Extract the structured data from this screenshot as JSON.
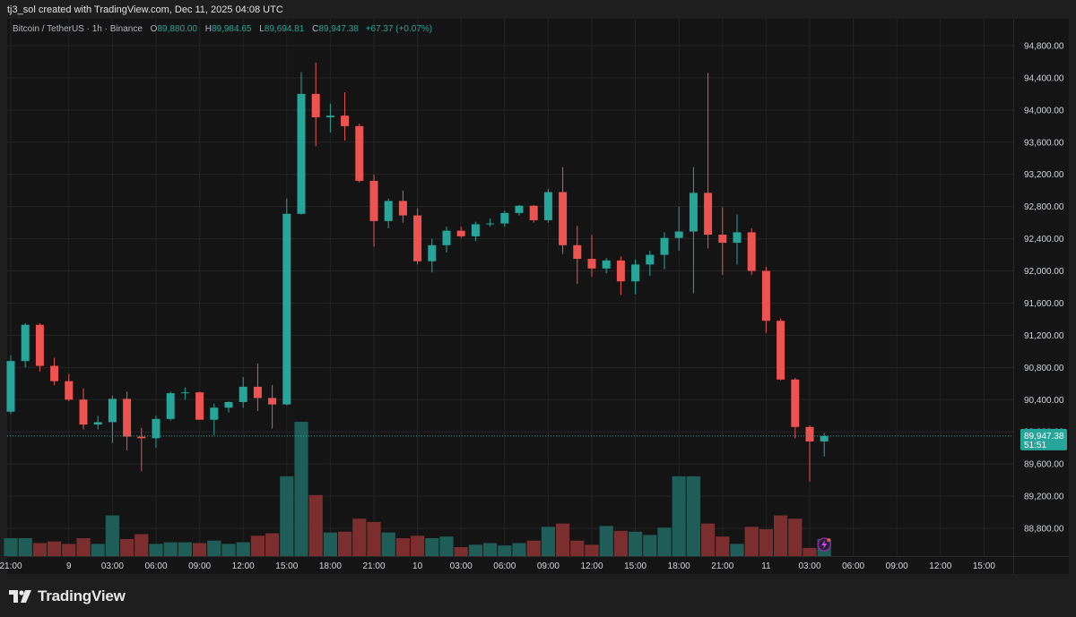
{
  "header": {
    "credit": "tj3_sol created with TradingView.com, Dec 11, 2025 04:08 UTC"
  },
  "legend": {
    "symbol": "Bitcoin / TetherUS · 1h · Binance",
    "o_label": "O",
    "o_value": "89,880.00",
    "h_label": "H",
    "h_value": "89,984.65",
    "l_label": "L",
    "l_value": "89,694.81",
    "c_label": "C",
    "c_value": "89,947.38",
    "change": "+67.37 (+0.07%)"
  },
  "footer": {
    "brand": "TradingView"
  },
  "colors": {
    "up": "#26a69a",
    "down": "#ef5350",
    "up_volume": "#1f5e58",
    "down_volume": "#7c2e2f",
    "grid": "#232323",
    "axis_text": "#d1d4dc"
  },
  "chart_data": {
    "type": "candlestick",
    "symbol": "BTCUSDT",
    "interval": "1h",
    "ylim": [
      88550,
      95200
    ],
    "y_ticks": [
      88800,
      89200,
      89600,
      90000,
      90400,
      90800,
      91200,
      91600,
      92000,
      92400,
      92800,
      93200,
      93600,
      94000,
      94400,
      94800
    ],
    "y_tick_labels": [
      "88,800.00",
      "89,200.00",
      "89,600.00",
      "90,000.00",
      "90,400.00",
      "90,800.00",
      "91,200.00",
      "91,600.00",
      "92,000.00",
      "92,400.00",
      "92,800.00",
      "93,200.00",
      "93,600.00",
      "94,000.00",
      "94,400.00",
      "94,800.00"
    ],
    "x_ticks": [
      {
        "index": 0,
        "label": "21:00"
      },
      {
        "index": 4,
        "label": "9"
      },
      {
        "index": 7,
        "label": "03:00"
      },
      {
        "index": 10,
        "label": "06:00"
      },
      {
        "index": 13,
        "label": "09:00"
      },
      {
        "index": 16,
        "label": "12:00"
      },
      {
        "index": 19,
        "label": "15:00"
      },
      {
        "index": 22,
        "label": "18:00"
      },
      {
        "index": 25,
        "label": "21:00"
      },
      {
        "index": 28,
        "label": "10"
      },
      {
        "index": 31,
        "label": "03:00"
      },
      {
        "index": 34,
        "label": "06:00"
      },
      {
        "index": 37,
        "label": "09:00"
      },
      {
        "index": 40,
        "label": "12:00"
      },
      {
        "index": 43,
        "label": "15:00"
      },
      {
        "index": 46,
        "label": "18:00"
      },
      {
        "index": 49,
        "label": "21:00"
      },
      {
        "index": 52,
        "label": "11"
      },
      {
        "index": 55,
        "label": "03:00"
      },
      {
        "index": 58,
        "label": "06:00"
      },
      {
        "index": 61,
        "label": "09:00"
      },
      {
        "index": 64,
        "label": "12:00"
      },
      {
        "index": 67,
        "label": "15:00"
      }
    ],
    "candles": [
      {
        "o": 90250,
        "h": 90950,
        "l": 90220,
        "c": 90880
      },
      {
        "o": 90880,
        "h": 91350,
        "l": 90800,
        "c": 91330
      },
      {
        "o": 91330,
        "h": 91350,
        "l": 90750,
        "c": 90820
      },
      {
        "o": 90820,
        "h": 90920,
        "l": 90580,
        "c": 90630
      },
      {
        "o": 90630,
        "h": 90720,
        "l": 90380,
        "c": 90400
      },
      {
        "o": 90400,
        "h": 90540,
        "l": 90030,
        "c": 90090
      },
      {
        "o": 90090,
        "h": 90200,
        "l": 90030,
        "c": 90120
      },
      {
        "o": 90120,
        "h": 90450,
        "l": 89860,
        "c": 90410
      },
      {
        "o": 90410,
        "h": 90500,
        "l": 89770,
        "c": 89940
      },
      {
        "o": 89940,
        "h": 90050,
        "l": 89510,
        "c": 89920
      },
      {
        "o": 89920,
        "h": 90200,
        "l": 89800,
        "c": 90160
      },
      {
        "o": 90160,
        "h": 90500,
        "l": 90140,
        "c": 90480
      },
      {
        "o": 90480,
        "h": 90550,
        "l": 90400,
        "c": 90490
      },
      {
        "o": 90490,
        "h": 90500,
        "l": 90160,
        "c": 90150
      },
      {
        "o": 90150,
        "h": 90350,
        "l": 89960,
        "c": 90300
      },
      {
        "o": 90300,
        "h": 90380,
        "l": 90240,
        "c": 90370
      },
      {
        "o": 90370,
        "h": 90680,
        "l": 90300,
        "c": 90560
      },
      {
        "o": 90560,
        "h": 90850,
        "l": 90260,
        "c": 90420
      },
      {
        "o": 90420,
        "h": 90580,
        "l": 90040,
        "c": 90340
      },
      {
        "o": 90340,
        "h": 92900,
        "l": 90330,
        "c": 92710
      },
      {
        "o": 92710,
        "h": 94470,
        "l": 92700,
        "c": 94200
      },
      {
        "o": 94200,
        "h": 94590,
        "l": 93550,
        "c": 93910
      },
      {
        "o": 93910,
        "h": 94080,
        "l": 93720,
        "c": 93930
      },
      {
        "o": 93930,
        "h": 94220,
        "l": 93620,
        "c": 93800
      },
      {
        "o": 93800,
        "h": 93830,
        "l": 93100,
        "c": 93120
      },
      {
        "o": 93120,
        "h": 93200,
        "l": 92300,
        "c": 92620
      },
      {
        "o": 92620,
        "h": 92900,
        "l": 92530,
        "c": 92870
      },
      {
        "o": 92870,
        "h": 93000,
        "l": 92600,
        "c": 92690
      },
      {
        "o": 92690,
        "h": 92780,
        "l": 92080,
        "c": 92120
      },
      {
        "o": 92120,
        "h": 92400,
        "l": 91980,
        "c": 92320
      },
      {
        "o": 92320,
        "h": 92550,
        "l": 92230,
        "c": 92500
      },
      {
        "o": 92500,
        "h": 92550,
        "l": 92410,
        "c": 92430
      },
      {
        "o": 92430,
        "h": 92610,
        "l": 92370,
        "c": 92580
      },
      {
        "o": 92580,
        "h": 92650,
        "l": 92550,
        "c": 92590
      },
      {
        "o": 92590,
        "h": 92750,
        "l": 92550,
        "c": 92720
      },
      {
        "o": 92720,
        "h": 92820,
        "l": 92690,
        "c": 92810
      },
      {
        "o": 92810,
        "h": 92820,
        "l": 92600,
        "c": 92630
      },
      {
        "o": 92630,
        "h": 93020,
        "l": 92600,
        "c": 92980
      },
      {
        "o": 92980,
        "h": 93290,
        "l": 92210,
        "c": 92320
      },
      {
        "o": 92320,
        "h": 92560,
        "l": 91840,
        "c": 92150
      },
      {
        "o": 92150,
        "h": 92450,
        "l": 91930,
        "c": 92030
      },
      {
        "o": 92030,
        "h": 92160,
        "l": 91970,
        "c": 92130
      },
      {
        "o": 92130,
        "h": 92180,
        "l": 91700,
        "c": 91870
      },
      {
        "o": 91870,
        "h": 92140,
        "l": 91710,
        "c": 92080
      },
      {
        "o": 92080,
        "h": 92250,
        "l": 91940,
        "c": 92200
      },
      {
        "o": 92200,
        "h": 92480,
        "l": 92020,
        "c": 92410
      },
      {
        "o": 92410,
        "h": 92800,
        "l": 92250,
        "c": 92490
      },
      {
        "o": 92490,
        "h": 93290,
        "l": 91720,
        "c": 92970
      },
      {
        "o": 92970,
        "h": 94460,
        "l": 92280,
        "c": 92450
      },
      {
        "o": 92450,
        "h": 92790,
        "l": 91950,
        "c": 92350
      },
      {
        "o": 92350,
        "h": 92700,
        "l": 92080,
        "c": 92480
      },
      {
        "o": 92480,
        "h": 92530,
        "l": 91950,
        "c": 92000
      },
      {
        "o": 92000,
        "h": 92050,
        "l": 91230,
        "c": 91380
      },
      {
        "o": 91380,
        "h": 91410,
        "l": 90640,
        "c": 90650
      },
      {
        "o": 90650,
        "h": 90670,
        "l": 89920,
        "c": 90060
      },
      {
        "o": 90060,
        "h": 90080,
        "l": 89380,
        "c": 89880
      },
      {
        "o": 89880,
        "h": 89985,
        "l": 89695,
        "c": 89947
      }
    ],
    "volumes": [
      22,
      22,
      16,
      18,
      15,
      22,
      15,
      50,
      21,
      27,
      15,
      17,
      17,
      16,
      19,
      15,
      17,
      25,
      28,
      98,
      165,
      75,
      29,
      30,
      46,
      42,
      29,
      22,
      25,
      22,
      24,
      11,
      14,
      16,
      13,
      16,
      19,
      36,
      40,
      19,
      14,
      37,
      31,
      30,
      26,
      35,
      98,
      98,
      40,
      24,
      15,
      36,
      33,
      50,
      46,
      10,
      21
    ],
    "volume_scale_max": 165,
    "last_price": 89947.38,
    "last_price_label": "89,947.38",
    "countdown_label": "51:51"
  }
}
